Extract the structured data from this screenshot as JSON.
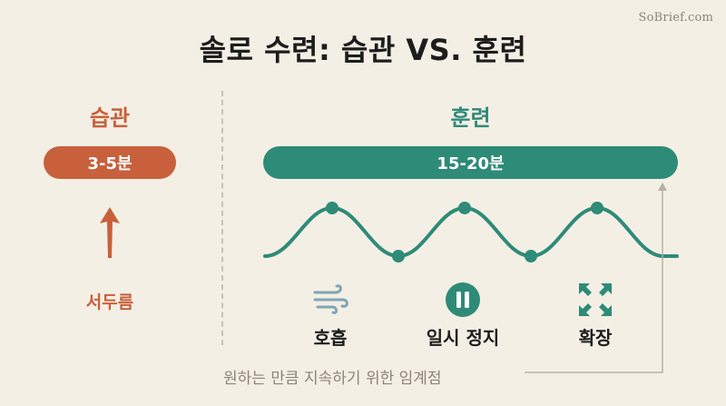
{
  "brand": "SoBrief.com",
  "title": "솔로 수련: 습관 VS. 훈련",
  "habit": {
    "heading": "습관",
    "duration": "3-5분",
    "warmup_label": "서두름"
  },
  "training": {
    "heading": "훈련",
    "duration": "15-20분",
    "phases": [
      {
        "label": "호흡",
        "icon": "wind-icon"
      },
      {
        "label": "일시 정지",
        "icon": "pause-icon"
      },
      {
        "label": "확장",
        "icon": "expand-icon"
      }
    ]
  },
  "threshold_note": "원하는 만큼 지속하기 위한 임계점",
  "colors": {
    "habit": "#c8603c",
    "training": "#2e8b78",
    "breath_icon": "#7fa6b4",
    "background": "#f4efe5"
  }
}
